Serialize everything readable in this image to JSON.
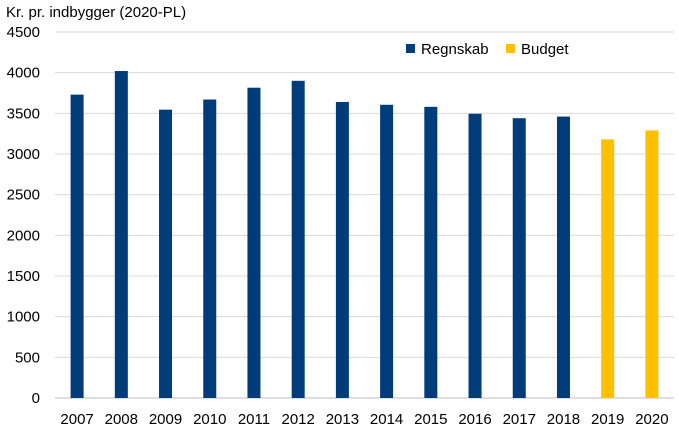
{
  "chart_data": {
    "type": "bar",
    "title": "Kr. pr. indbygger (2020-PL)",
    "xlabel": "",
    "ylabel": "Kr. pr. indbygger (2020-PL)",
    "ylim": [
      0,
      4500
    ],
    "yticks": [
      0,
      500,
      1000,
      1500,
      2000,
      2500,
      3000,
      3500,
      4000,
      4500
    ],
    "ytick_labels": [
      "0",
      "500",
      "1000",
      "1500",
      "2000",
      "2500",
      "3000",
      "3500",
      "4000",
      "4500"
    ],
    "grid": true,
    "legend_position": "top-right",
    "categories": [
      "2007",
      "2008",
      "2009",
      "2010",
      "2011",
      "2012",
      "2013",
      "2014",
      "2015",
      "2016",
      "2017",
      "2018",
      "2019",
      "2020"
    ],
    "series": [
      {
        "name": "Regnskab",
        "color": "#003b7a",
        "values": [
          3730,
          4020,
          3545,
          3670,
          3815,
          3900,
          3640,
          3605,
          3580,
          3495,
          3440,
          3460,
          null,
          null
        ]
      },
      {
        "name": "Budget",
        "color": "#ffc000",
        "values": [
          null,
          null,
          null,
          null,
          null,
          null,
          null,
          null,
          null,
          null,
          null,
          null,
          3180,
          3290
        ]
      }
    ]
  }
}
